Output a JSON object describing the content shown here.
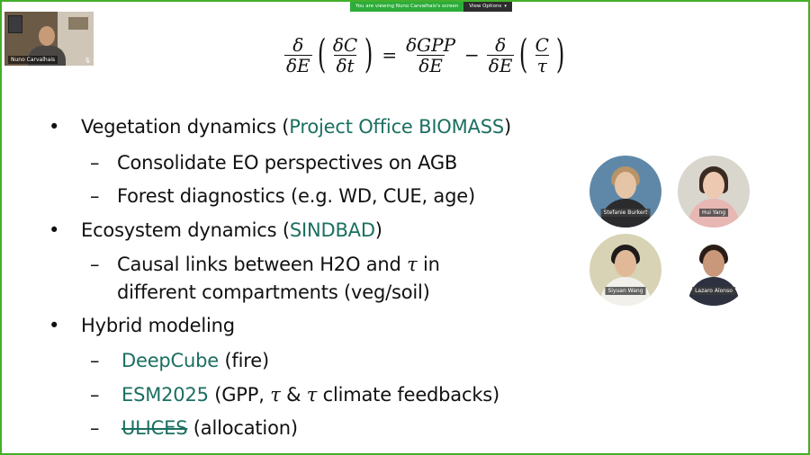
{
  "share_banner": {
    "viewing_text": "You are viewing Nuno Carvalhais's screen",
    "view_options_label": "View Options",
    "chevron_icon": "chevron-down-icon"
  },
  "self_video": {
    "name": "Nuno Carvalhais",
    "mic_icon": "mic-icon"
  },
  "equation": {
    "lhs_num": "δ",
    "lhs_den": "δE",
    "inner_num": "δC",
    "inner_den": "δt",
    "eq": "=",
    "rhs1_num": "δGPP",
    "rhs1_den": "δE",
    "minus": "−",
    "rhs2_num": "δ",
    "rhs2_den": "δE",
    "rhs2_inner_num": "C",
    "rhs2_inner_den": "τ"
  },
  "bullets": {
    "b1_prefix": "Vegetation dynamics (",
    "b1_link": "Project Office BIOMASS",
    "b1_suffix": ")",
    "b1_sub1": "Consolidate EO perspectives on AGB",
    "b1_sub2": "Forest diagnostics (e.g. WD, CUE, age)",
    "b2_prefix": "Ecosystem dynamics (",
    "b2_link": "SINDBAD",
    "b2_suffix": ")",
    "b2_sub1_a": "Causal links between H2O and ",
    "b2_sub1_tau": "τ",
    "b2_sub1_b": " in",
    "b2_sub1_line2": "different compartments (veg/soil)",
    "b3": "Hybrid modeling",
    "b3_sub1_link": "DeepCube",
    "b3_sub1_rest": " (fire)",
    "b3_sub2_link": "ESM2025",
    "b3_sub2_a": " (GPP, ",
    "b3_sub2_tau1": "τ",
    "b3_sub2_amp": " & ",
    "b3_sub2_tau2": "τ",
    "b3_sub2_b": " climate feedbacks)",
    "b3_sub3_link": "ULICES",
    "b3_sub3_rest": " (allocation)",
    "bullet_char": "•",
    "dash_char": "–"
  },
  "participants": [
    {
      "name": "Stefanie Burkert"
    },
    {
      "name": "Hui Yang"
    },
    {
      "name": "Siyuan Wang"
    },
    {
      "name": "Lazaro Alonso"
    }
  ]
}
